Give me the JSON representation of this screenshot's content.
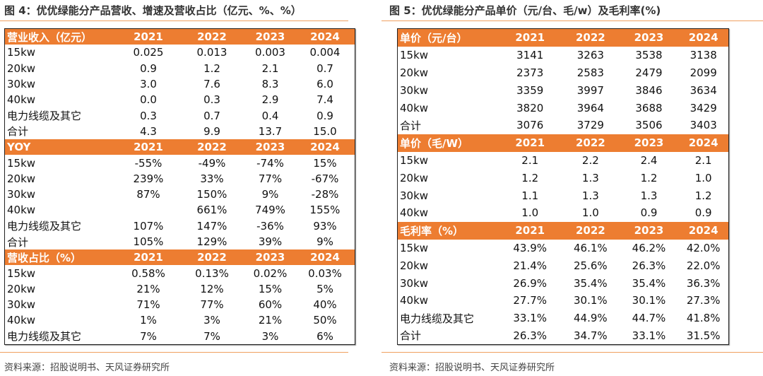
{
  "left": {
    "title": "图 4：优优绿能分产品营收、增速及营收占比（亿元、%、%）",
    "source": "资料来源：招股说明书、天风证券研究所",
    "sections": [
      {
        "header": [
          "营业收入（亿元）",
          "2021",
          "2022",
          "2023",
          "2024"
        ],
        "rows": [
          [
            "15kw",
            "0.025",
            "0.013",
            "0.003",
            "0.004"
          ],
          [
            "20kw",
            "0.9",
            "1.2",
            "2.1",
            "0.7"
          ],
          [
            "30kw",
            "3.0",
            "7.6",
            "8.3",
            "6.0"
          ],
          [
            "40kw",
            "0.0",
            "0.3",
            "2.9",
            "7.4"
          ],
          [
            "电力线缆及其它",
            "0.3",
            "0.7",
            "0.4",
            "0.9"
          ],
          [
            "合计",
            "4.3",
            "9.9",
            "13.7",
            "15.0"
          ]
        ]
      },
      {
        "header": [
          "YOY",
          "2021",
          "2022",
          "2023",
          "2024"
        ],
        "rows": [
          [
            "15kw",
            "-55%",
            "-49%",
            "-74%",
            "15%"
          ],
          [
            "20kw",
            "239%",
            "33%",
            "77%",
            "-67%"
          ],
          [
            "30kw",
            "87%",
            "150%",
            "9%",
            "-28%"
          ],
          [
            "40kw",
            "",
            "661%",
            "749%",
            "155%"
          ],
          [
            "电力线缆及其它",
            "107%",
            "147%",
            "-36%",
            "93%"
          ],
          [
            "合计",
            "105%",
            "129%",
            "39%",
            "9%"
          ]
        ]
      },
      {
        "header": [
          "营收占比（%）",
          "2021",
          "2022",
          "2023",
          "2024"
        ],
        "rows": [
          [
            "15kw",
            "0.58%",
            "0.13%",
            "0.02%",
            "0.03%"
          ],
          [
            "20kw",
            "21%",
            "12%",
            "15%",
            "5%"
          ],
          [
            "30kw",
            "71%",
            "77%",
            "60%",
            "40%"
          ],
          [
            "40kw",
            "1%",
            "3%",
            "21%",
            "50%"
          ],
          [
            "电力线缆及其它",
            "7%",
            "7%",
            "3%",
            "6%"
          ]
        ]
      }
    ]
  },
  "right": {
    "title": "图 5：优优绿能分产品单价（元/台、毛/w）及毛利率(%)",
    "source": "资料来源：招股说明书、天风证券研究所",
    "sections": [
      {
        "header": [
          "单价（元/台）",
          "2021",
          "2022",
          "2023",
          "2024"
        ],
        "rows": [
          [
            "15kw",
            "3141",
            "3263",
            "3538",
            "3138"
          ],
          [
            "20kw",
            "2373",
            "2583",
            "2479",
            "2099"
          ],
          [
            "30kw",
            "3359",
            "3997",
            "3846",
            "3634"
          ],
          [
            "40kw",
            "3820",
            "3964",
            "3688",
            "3429"
          ],
          [
            "合计",
            "3076",
            "3729",
            "3506",
            "3403"
          ]
        ]
      },
      {
        "header": [
          "单价（毛/W）",
          "2021",
          "2022",
          "2023",
          "2024"
        ],
        "rows": [
          [
            "15kw",
            "2.1",
            "2.2",
            "2.4",
            "2.1"
          ],
          [
            "20kw",
            "1.2",
            "1.3",
            "1.2",
            "1.0"
          ],
          [
            "30kw",
            "1.1",
            "1.3",
            "1.3",
            "1.2"
          ],
          [
            "40kw",
            "1.0",
            "1.0",
            "0.9",
            "0.9"
          ]
        ]
      },
      {
        "header": [
          "毛利率（%）",
          "2021",
          "2022",
          "2023",
          "2024"
        ],
        "rows": [
          [
            "15kw",
            "43.9%",
            "46.1%",
            "46.2%",
            "42.0%"
          ],
          [
            "20kw",
            "21.4%",
            "25.6%",
            "26.3%",
            "22.0%"
          ],
          [
            "30kw",
            "26.9%",
            "35.4%",
            "35.4%",
            "36.3%"
          ],
          [
            "40kw",
            "27.7%",
            "30.1%",
            "30.1%",
            "27.3%"
          ],
          [
            "电力线缆及其它",
            "33.1%",
            "44.9%",
            "44.7%",
            "41.8%"
          ],
          [
            "合计",
            "26.3%",
            "34.7%",
            "33.1%",
            "31.5%"
          ]
        ]
      }
    ]
  },
  "colors": {
    "header_bg": "#ed7d31",
    "rule": "#f0a060"
  }
}
